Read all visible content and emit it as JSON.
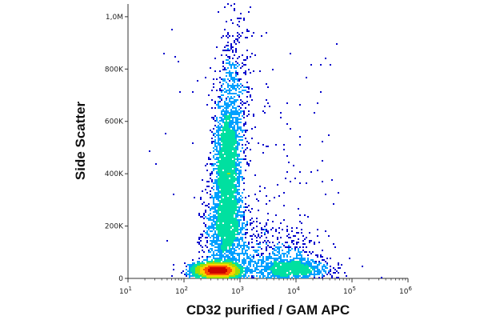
{
  "chart_data": {
    "type": "scatter",
    "subtype": "flow-cytometry density dot plot",
    "xlabel": "CD32 purified / GAM APC",
    "ylabel": "Side Scatter",
    "x_scale": "log",
    "xlim": [
      10,
      1000000
    ],
    "x_ticks": [
      {
        "value": 10,
        "base": "10",
        "exp": "1"
      },
      {
        "value": 100,
        "base": "10",
        "exp": "2"
      },
      {
        "value": 1000,
        "base": "10",
        "exp": "3"
      },
      {
        "value": 10000,
        "base": "10",
        "exp": "4"
      },
      {
        "value": 100000,
        "base": "10",
        "exp": "5"
      },
      {
        "value": 1000000,
        "base": "10",
        "exp": "6"
      }
    ],
    "y_scale": "linear",
    "ylim": [
      0,
      1048576
    ],
    "y_ticks": [
      {
        "value": 0,
        "label": "0"
      },
      {
        "value": 200000,
        "label": "200K"
      },
      {
        "value": 400000,
        "label": "400K"
      },
      {
        "value": 600000,
        "label": "600K"
      },
      {
        "value": 800000,
        "label": "800K"
      },
      {
        "value": 1000000,
        "label": "1,0M"
      }
    ],
    "colormap": [
      "#0000cc",
      "#00a0ff",
      "#00e0a0",
      "#a0e000",
      "#ffd000",
      "#ff5000",
      "#cc0000"
    ],
    "grid": false,
    "legend": "none",
    "populations": [
      {
        "center_x": 400,
        "center_y": 30000,
        "spread_log_x": 0.2,
        "spread_y": 14000,
        "events": 3800
      },
      {
        "center_x": 600,
        "center_y": 420000,
        "spread_log_x": 0.12,
        "spread_y": 140000,
        "events": 2600
      },
      {
        "center_x": 550,
        "center_y": 180000,
        "spread_log_x": 0.17,
        "spread_y": 80000,
        "events": 1100
      },
      {
        "center_x": 8000,
        "center_y": 35000,
        "spread_log_x": 0.32,
        "spread_y": 22000,
        "events": 900
      },
      {
        "center_x": 3000,
        "center_y": 100000,
        "spread_log_x": 0.45,
        "spread_y": 60000,
        "events": 500
      },
      {
        "center_x": 800,
        "center_y": 700000,
        "spread_log_x": 0.15,
        "spread_y": 180000,
        "events": 420
      },
      {
        "center_x": 2000,
        "center_y": 400000,
        "spread_log_x": 0.8,
        "spread_y": 320000,
        "events": 220
      }
    ]
  }
}
